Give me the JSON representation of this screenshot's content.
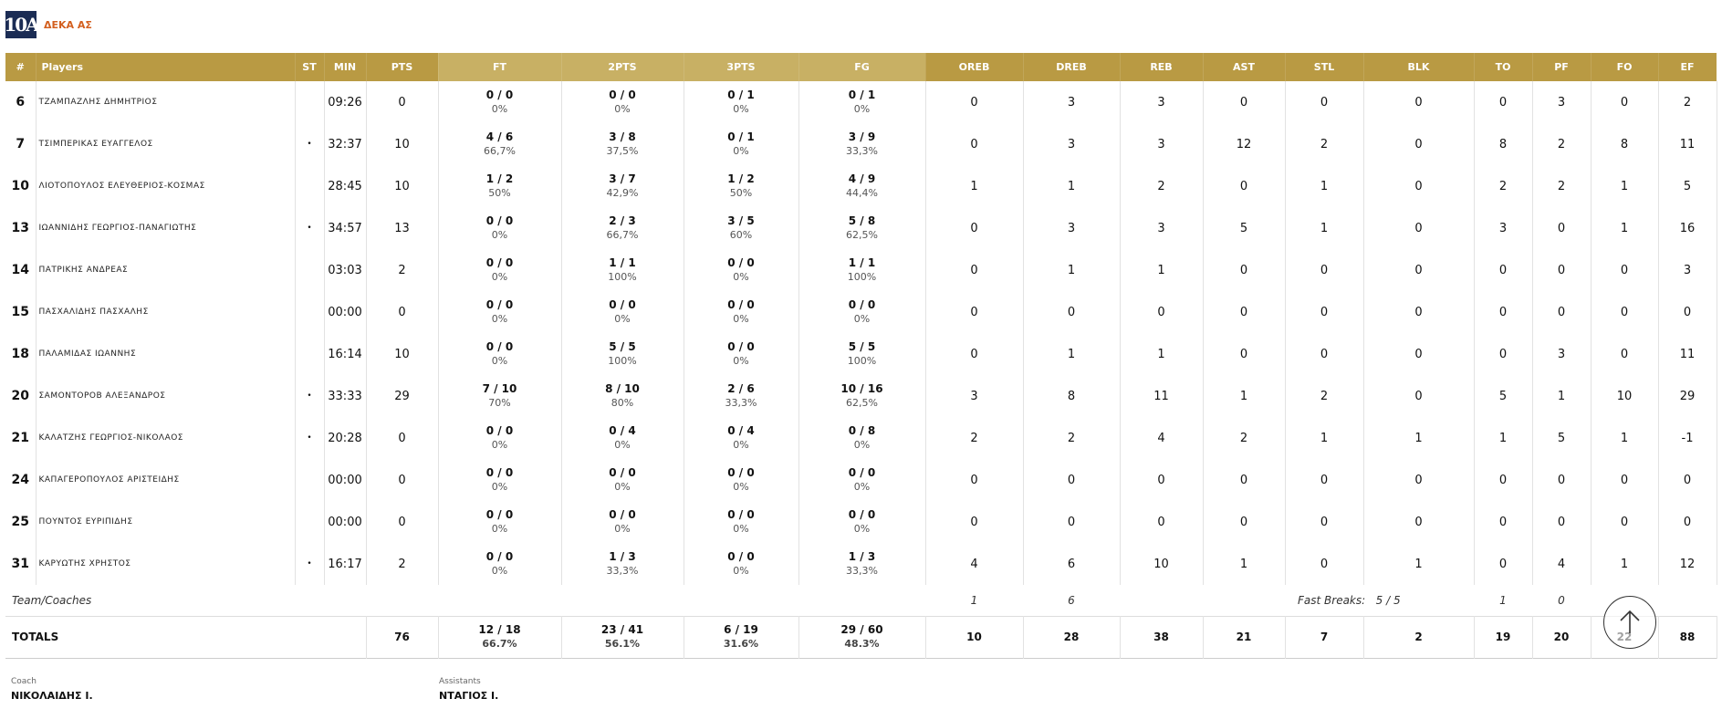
{
  "team": {
    "logo_text": "10A",
    "name": "ΔΕΚΑ ΑΣ"
  },
  "headers": [
    "#",
    "Players",
    "ST",
    "MIN",
    "PTS",
    "FT",
    "2PTS",
    "3PTS",
    "FG",
    "OREB",
    "DREB",
    "REB",
    "AST",
    "STL",
    "BLK",
    "TO",
    "PF",
    "FO",
    "EF"
  ],
  "players": [
    {
      "num": "6",
      "name": "ΤΖΑΜΠΑΖΛΗΣ ΔΗΜΗΤΡΙΟΣ",
      "st": "",
      "min": "09:26",
      "pts": "0",
      "ft": "0 / 0",
      "ft_pct": "0%",
      "p2": "0 / 0",
      "p2_pct": "0%",
      "p3": "0 / 1",
      "p3_pct": "0%",
      "fg": "0 / 1",
      "fg_pct": "0%",
      "oreb": "0",
      "dreb": "3",
      "reb": "3",
      "ast": "0",
      "stl": "0",
      "blk": "0",
      "to": "0",
      "pf": "3",
      "fo": "0",
      "ef": "2"
    },
    {
      "num": "7",
      "name": "ΤΣΙΜΠΕΡΙΚΑΣ ΕΥΑΓΓΕΛΟΣ",
      "st": "•",
      "min": "32:37",
      "pts": "10",
      "ft": "4 / 6",
      "ft_pct": "66,7%",
      "p2": "3 / 8",
      "p2_pct": "37,5%",
      "p3": "0 / 1",
      "p3_pct": "0%",
      "fg": "3 / 9",
      "fg_pct": "33,3%",
      "oreb": "0",
      "dreb": "3",
      "reb": "3",
      "ast": "12",
      "stl": "2",
      "blk": "0",
      "to": "8",
      "pf": "2",
      "fo": "8",
      "ef": "11"
    },
    {
      "num": "10",
      "name": "ΛΙΟΤΟΠΟΥΛΟΣ ΕΛΕΥΘΕΡΙΟΣ-ΚΟΣΜΑΣ",
      "st": "",
      "min": "28:45",
      "pts": "10",
      "ft": "1 / 2",
      "ft_pct": "50%",
      "p2": "3 / 7",
      "p2_pct": "42,9%",
      "p3": "1 / 2",
      "p3_pct": "50%",
      "fg": "4 / 9",
      "fg_pct": "44,4%",
      "oreb": "1",
      "dreb": "1",
      "reb": "2",
      "ast": "0",
      "stl": "1",
      "blk": "0",
      "to": "2",
      "pf": "2",
      "fo": "1",
      "ef": "5"
    },
    {
      "num": "13",
      "name": "ΙΩΑΝΝΙΔΗΣ ΓΕΩΡΓΙΟΣ-ΠΑΝΑΓΙΩΤΗΣ",
      "st": "•",
      "min": "34:57",
      "pts": "13",
      "ft": "0 / 0",
      "ft_pct": "0%",
      "p2": "2 / 3",
      "p2_pct": "66,7%",
      "p3": "3 / 5",
      "p3_pct": "60%",
      "fg": "5 / 8",
      "fg_pct": "62,5%",
      "oreb": "0",
      "dreb": "3",
      "reb": "3",
      "ast": "5",
      "stl": "1",
      "blk": "0",
      "to": "3",
      "pf": "0",
      "fo": "1",
      "ef": "16"
    },
    {
      "num": "14",
      "name": "ΠΑΤΡΙΚΗΣ ΑΝΔΡΕΑΣ",
      "st": "",
      "min": "03:03",
      "pts": "2",
      "ft": "0 / 0",
      "ft_pct": "0%",
      "p2": "1 / 1",
      "p2_pct": "100%",
      "p3": "0 / 0",
      "p3_pct": "0%",
      "fg": "1 / 1",
      "fg_pct": "100%",
      "oreb": "0",
      "dreb": "1",
      "reb": "1",
      "ast": "0",
      "stl": "0",
      "blk": "0",
      "to": "0",
      "pf": "0",
      "fo": "0",
      "ef": "3"
    },
    {
      "num": "15",
      "name": "ΠΑΣΧΑΛΙΔΗΣ ΠΑΣΧΑΛΗΣ",
      "st": "",
      "min": "00:00",
      "pts": "0",
      "ft": "0 / 0",
      "ft_pct": "0%",
      "p2": "0 / 0",
      "p2_pct": "0%",
      "p3": "0 / 0",
      "p3_pct": "0%",
      "fg": "0 / 0",
      "fg_pct": "0%",
      "oreb": "0",
      "dreb": "0",
      "reb": "0",
      "ast": "0",
      "stl": "0",
      "blk": "0",
      "to": "0",
      "pf": "0",
      "fo": "0",
      "ef": "0"
    },
    {
      "num": "18",
      "name": "ΠΑΛΑΜΙΔΑΣ ΙΩΑΝΝΗΣ",
      "st": "",
      "min": "16:14",
      "pts": "10",
      "ft": "0 / 0",
      "ft_pct": "0%",
      "p2": "5 / 5",
      "p2_pct": "100%",
      "p3": "0 / 0",
      "p3_pct": "0%",
      "fg": "5 / 5",
      "fg_pct": "100%",
      "oreb": "0",
      "dreb": "1",
      "reb": "1",
      "ast": "0",
      "stl": "0",
      "blk": "0",
      "to": "0",
      "pf": "3",
      "fo": "0",
      "ef": "11"
    },
    {
      "num": "20",
      "name": "ΣΑΜΟΝΤΟΡΟΒ ΑΛΕΞΑΝΔΡΟΣ",
      "st": "•",
      "min": "33:33",
      "pts": "29",
      "ft": "7 / 10",
      "ft_pct": "70%",
      "p2": "8 / 10",
      "p2_pct": "80%",
      "p3": "2 / 6",
      "p3_pct": "33,3%",
      "fg": "10 / 16",
      "fg_pct": "62,5%",
      "oreb": "3",
      "dreb": "8",
      "reb": "11",
      "ast": "1",
      "stl": "2",
      "blk": "0",
      "to": "5",
      "pf": "1",
      "fo": "10",
      "ef": "29"
    },
    {
      "num": "21",
      "name": "ΚΑΛΑΤΖΗΣ ΓΕΩΡΓΙΟΣ-ΝΙΚΟΛΑΟΣ",
      "st": "•",
      "min": "20:28",
      "pts": "0",
      "ft": "0 / 0",
      "ft_pct": "0%",
      "p2": "0 / 4",
      "p2_pct": "0%",
      "p3": "0 / 4",
      "p3_pct": "0%",
      "fg": "0 / 8",
      "fg_pct": "0%",
      "oreb": "2",
      "dreb": "2",
      "reb": "4",
      "ast": "2",
      "stl": "1",
      "blk": "1",
      "to": "1",
      "pf": "5",
      "fo": "1",
      "ef": "-1"
    },
    {
      "num": "24",
      "name": "ΚΑΠΑΓΕΡΟΠΟΥΛΟΣ ΑΡΙΣΤΕΙΔΗΣ",
      "st": "",
      "min": "00:00",
      "pts": "0",
      "ft": "0 / 0",
      "ft_pct": "0%",
      "p2": "0 / 0",
      "p2_pct": "0%",
      "p3": "0 / 0",
      "p3_pct": "0%",
      "fg": "0 / 0",
      "fg_pct": "0%",
      "oreb": "0",
      "dreb": "0",
      "reb": "0",
      "ast": "0",
      "stl": "0",
      "blk": "0",
      "to": "0",
      "pf": "0",
      "fo": "0",
      "ef": "0"
    },
    {
      "num": "25",
      "name": "ΠΟΥΝΤΟΣ ΕΥΡΙΠΙΔΗΣ",
      "st": "",
      "min": "00:00",
      "pts": "0",
      "ft": "0 / 0",
      "ft_pct": "0%",
      "p2": "0 / 0",
      "p2_pct": "0%",
      "p3": "0 / 0",
      "p3_pct": "0%",
      "fg": "0 / 0",
      "fg_pct": "0%",
      "oreb": "0",
      "dreb": "0",
      "reb": "0",
      "ast": "0",
      "stl": "0",
      "blk": "0",
      "to": "0",
      "pf": "0",
      "fo": "0",
      "ef": "0"
    },
    {
      "num": "31",
      "name": "ΚΑΡΥΩΤΗΣ ΧΡΗΣΤΟΣ",
      "st": "•",
      "min": "16:17",
      "pts": "2",
      "ft": "0 / 0",
      "ft_pct": "0%",
      "p2": "1 / 3",
      "p2_pct": "33,3%",
      "p3": "0 / 0",
      "p3_pct": "0%",
      "fg": "1 / 3",
      "fg_pct": "33,3%",
      "oreb": "4",
      "dreb": "6",
      "reb": "10",
      "ast": "1",
      "stl": "0",
      "blk": "1",
      "to": "0",
      "pf": "4",
      "fo": "1",
      "ef": "12"
    }
  ],
  "team_coaches": {
    "label": "Team/Coaches",
    "oreb": "1",
    "dreb": "6",
    "fast_breaks_label": "Fast Breaks:",
    "fast_breaks_value": "5 / 5",
    "to": "1",
    "pf": "0"
  },
  "totals": {
    "label": "TOTALS",
    "pts": "76",
    "ft": "12 / 18",
    "ft_pct": "66.7%",
    "p2": "23 / 41",
    "p2_pct": "56.1%",
    "p3": "6 / 19",
    "p3_pct": "31.6%",
    "fg": "29 / 60",
    "fg_pct": "48.3%",
    "oreb": "10",
    "dreb": "28",
    "reb": "38",
    "ast": "21",
    "stl": "7",
    "blk": "2",
    "to": "19",
    "pf": "20",
    "fo": "22",
    "ef": "88"
  },
  "staff": {
    "coach_label": "Coach",
    "coach": "ΝΙΚΟΛΑΙΔΗΣ Ι.",
    "assistants_label": "Assistants",
    "assistants": "ΝΤΑΓΙΟΣ Ι."
  },
  "icons": {
    "scroll_top": "arrow-up-icon"
  },
  "colors": {
    "header_gold": "#b99a43",
    "header_gold_light": "#c8b064",
    "team_name": "#d35f1e",
    "logo_bg": "#1b2c54"
  }
}
